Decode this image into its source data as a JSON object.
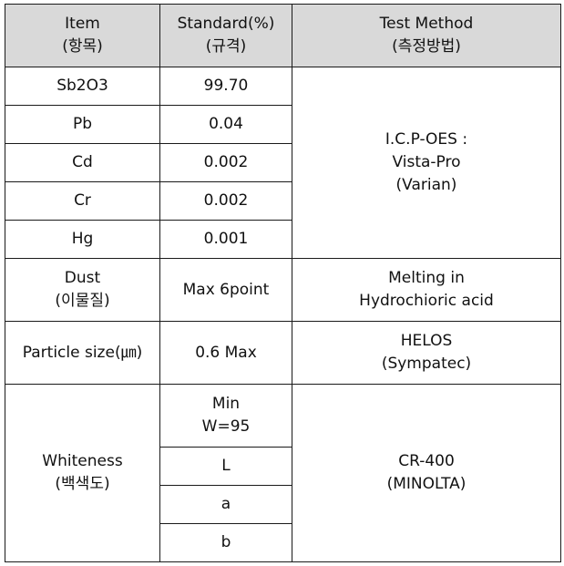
{
  "header": {
    "item": [
      "Item",
      "(항목)"
    ],
    "standard": [
      "Standard(%)",
      "(규격)"
    ],
    "method": [
      "Test Method",
      "(측정방법)"
    ]
  },
  "icp_rows": [
    {
      "item": "Sb2O3",
      "standard": "99.70"
    },
    {
      "item": "Pb",
      "standard": "0.04"
    },
    {
      "item": "Cd",
      "standard": "0.002"
    },
    {
      "item": "Cr",
      "standard": "0.002"
    },
    {
      "item": "Hg",
      "standard": "0.001"
    }
  ],
  "icp_method": [
    "I.C.P-OES :",
    "Vista-Pro",
    "(Varian)"
  ],
  "dust": {
    "item": [
      "Dust",
      "(이물질)"
    ],
    "standard": "Max 6point",
    "method": [
      "Melting in",
      "Hydrochioric acid"
    ]
  },
  "particle": {
    "item": "Particle size(㎛)",
    "standard": "0.6 Max",
    "method": [
      "HELOS",
      "(Sympatec)"
    ]
  },
  "whiteness": {
    "item": [
      "Whiteness",
      "(백색도)"
    ],
    "standards": [
      [
        "Min",
        "W=95"
      ],
      [
        "L"
      ],
      [
        "a"
      ],
      [
        "b"
      ]
    ],
    "method": [
      "CR-400",
      "(MINOLTA)"
    ]
  }
}
